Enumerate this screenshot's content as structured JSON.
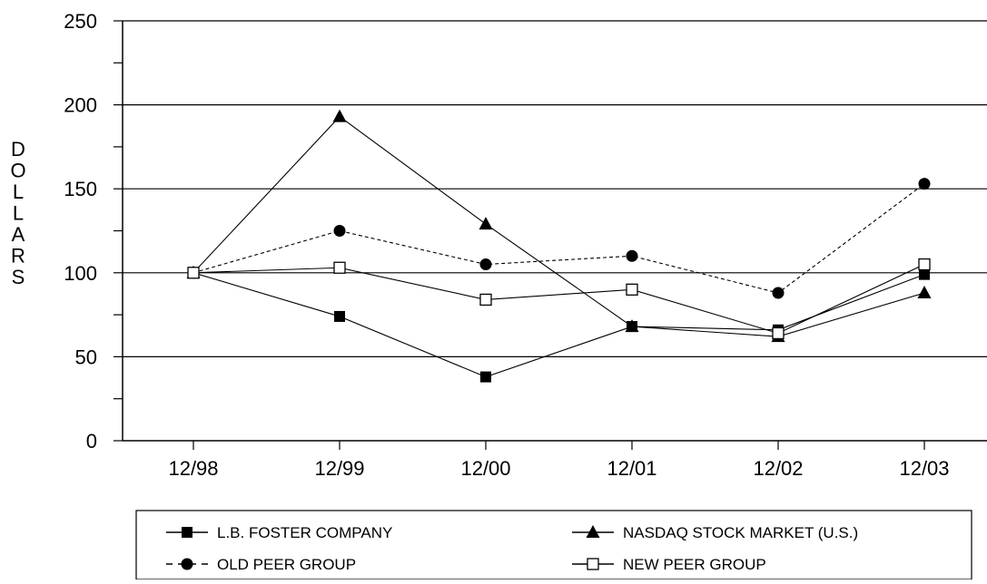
{
  "chart_data": {
    "type": "line",
    "title": "",
    "xlabel": "",
    "ylabel": "DOLLARS",
    "categories": [
      "12/98",
      "12/99",
      "12/00",
      "12/01",
      "12/02",
      "12/03"
    ],
    "ylim": [
      0,
      250
    ],
    "yticks": [
      0,
      50,
      100,
      150,
      200,
      250
    ],
    "grid": "horizontal",
    "legend_position": "bottom",
    "series": [
      {
        "name": "L.B. FOSTER COMPANY",
        "marker": "square-filled",
        "line": "solid",
        "values": [
          100,
          74,
          38,
          68,
          66,
          99
        ]
      },
      {
        "name": "NASDAQ STOCK MARKET (U.S.)",
        "marker": "triangle-filled",
        "line": "solid",
        "values": [
          100,
          193,
          129,
          68,
          62,
          88
        ]
      },
      {
        "name": "OLD PEER GROUP",
        "marker": "circle-filled",
        "line": "dashed",
        "values": [
          100,
          125,
          105,
          110,
          88,
          153
        ]
      },
      {
        "name": "NEW PEER GROUP",
        "marker": "square-open",
        "line": "solid",
        "values": [
          100,
          103,
          84,
          90,
          64,
          105
        ]
      }
    ],
    "colors": {
      "line": "#000000",
      "grid": "#000000",
      "background": "#ffffff"
    }
  }
}
